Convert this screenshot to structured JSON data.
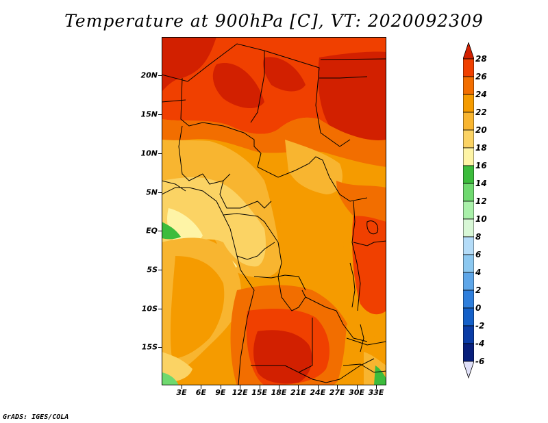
{
  "title": "Temperature at 900hPa [C], VT: 2020092309",
  "footer": "GrADS: IGES/COLA",
  "y_axis_labels": [
    "20N",
    "15N",
    "10N",
    "5N",
    "EQ",
    "5S",
    "10S",
    "15S"
  ],
  "x_axis_labels": [
    "3E",
    "6E",
    "9E",
    "12E",
    "15E",
    "18E",
    "21E",
    "24E",
    "27E",
    "30E",
    "33E"
  ],
  "colorbar": {
    "labels": [
      "28",
      "26",
      "24",
      "22",
      "20",
      "18",
      "16",
      "14",
      "12",
      "10",
      "8",
      "6",
      "4",
      "2",
      "0",
      "-2",
      "-4",
      "-6"
    ],
    "colors": [
      "#d22000",
      "#f04000",
      "#f26e00",
      "#f59b00",
      "#f8b530",
      "#fbd364",
      "#fef4a6",
      "#3cbc3c",
      "#6fd96f",
      "#aaf0aa",
      "#d8f7d6",
      "#b4dcf8",
      "#8cc8f0",
      "#5ea6e8",
      "#2f7fdc",
      "#1460c8",
      "#0a3ca6",
      "#081f7c",
      "#0a0a5a",
      "#e0e0f8"
    ]
  },
  "map": {
    "variable": "Temperature at 900hPa",
    "units": "C",
    "valid_time": "2020092309",
    "lon_range": [
      0.5,
      34.5
    ],
    "lat_range": [
      -20,
      24
    ]
  }
}
